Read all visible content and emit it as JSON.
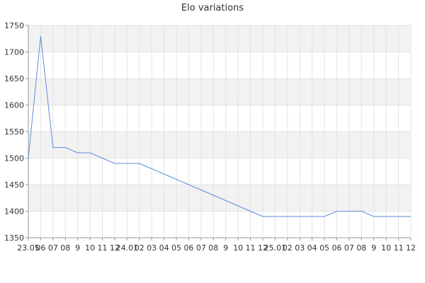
{
  "chart_data": {
    "type": "line",
    "title": "Elo variations",
    "xlabel": "",
    "ylabel": "",
    "ylim": [
      1350,
      1750
    ],
    "yticks": [
      1350,
      1400,
      1450,
      1500,
      1550,
      1600,
      1650,
      1700,
      1750
    ],
    "x_tick_labels": [
      "23.05",
      "06",
      "07",
      "08",
      "9",
      "10",
      "11",
      "12",
      "24.01",
      "02",
      "03",
      "04",
      "05",
      "06",
      "07",
      "08",
      "9",
      "10",
      "11",
      "12",
      "25.01",
      "02",
      "03",
      "04",
      "05",
      "06",
      "07",
      "08",
      "9",
      "10",
      "11",
      "12"
    ],
    "grid": true,
    "series": [
      {
        "color": "#5b8fd9",
        "values": [
          1500,
          1730,
          1520,
          1520,
          1510,
          1510,
          1500,
          1490,
          1490,
          1490,
          1480,
          1470,
          1460,
          1450,
          1440,
          1430,
          1420,
          1410,
          1400,
          1390,
          1390,
          1390,
          1390,
          1390,
          1390,
          1400,
          1400,
          1400,
          1390,
          1390,
          1390,
          1390
        ]
      }
    ]
  }
}
